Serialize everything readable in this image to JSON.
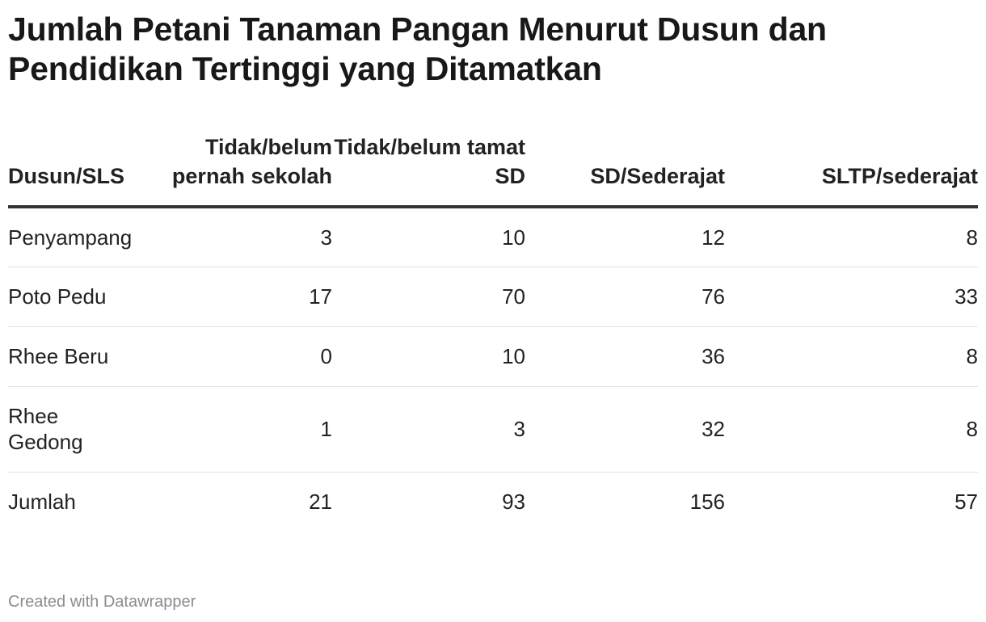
{
  "chart_data": {
    "type": "table",
    "title": "Jumlah Petani Tanaman Pangan Menurut Dusun dan Pendidikan Tertinggi yang Ditamatkan",
    "columns": [
      "Dusun/SLS",
      "Tidak/belum pernah sekolah",
      "Tidak/belum tamat SD",
      "SD/Sederajat",
      "SLTP/sederajat"
    ],
    "rows": [
      {
        "dusun": "Penyampang",
        "values": [
          "3",
          "10",
          "12",
          "8"
        ]
      },
      {
        "dusun": "Poto Pedu",
        "values": [
          "17",
          "70",
          "76",
          "33"
        ]
      },
      {
        "dusun": "Rhee Beru",
        "values": [
          "0",
          "10",
          "36",
          "8"
        ]
      },
      {
        "dusun": "Rhee Gedong",
        "values": [
          "1",
          "3",
          "32",
          "8"
        ]
      },
      {
        "dusun": "Jumlah",
        "values": [
          "21",
          "93",
          "156",
          "57"
        ]
      }
    ]
  },
  "footer": {
    "credit": "Created with Datawrapper"
  }
}
